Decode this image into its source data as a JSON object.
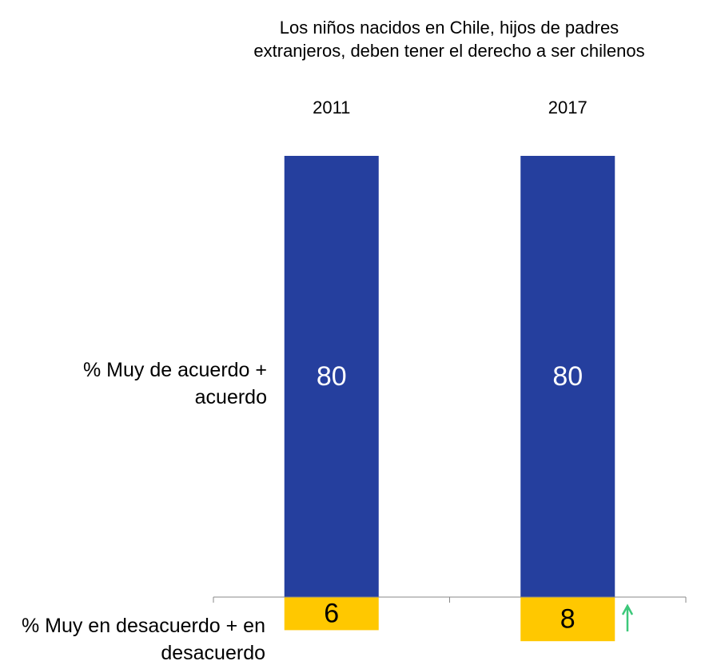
{
  "chart_data": {
    "type": "bar",
    "title": [
      "Los niños nacidos en Chile, hijos de padres",
      "extranjeros, deben tener el derecho a ser chilenos"
    ],
    "categories": [
      "2011",
      "2017"
    ],
    "series": [
      {
        "name": "% Muy de acuerdo + acuerdo",
        "color": "#253f9e",
        "label_color": "#ffffff",
        "values": [
          80,
          80
        ]
      },
      {
        "name": "% Muy en desacuerdo + en desacuerdo",
        "color": "#ffc800",
        "label_color": "#000000",
        "values": [
          -6,
          -8
        ],
        "value_labels": [
          "6",
          "8"
        ]
      }
    ],
    "ylim": [
      -10,
      80
    ]
  }
}
